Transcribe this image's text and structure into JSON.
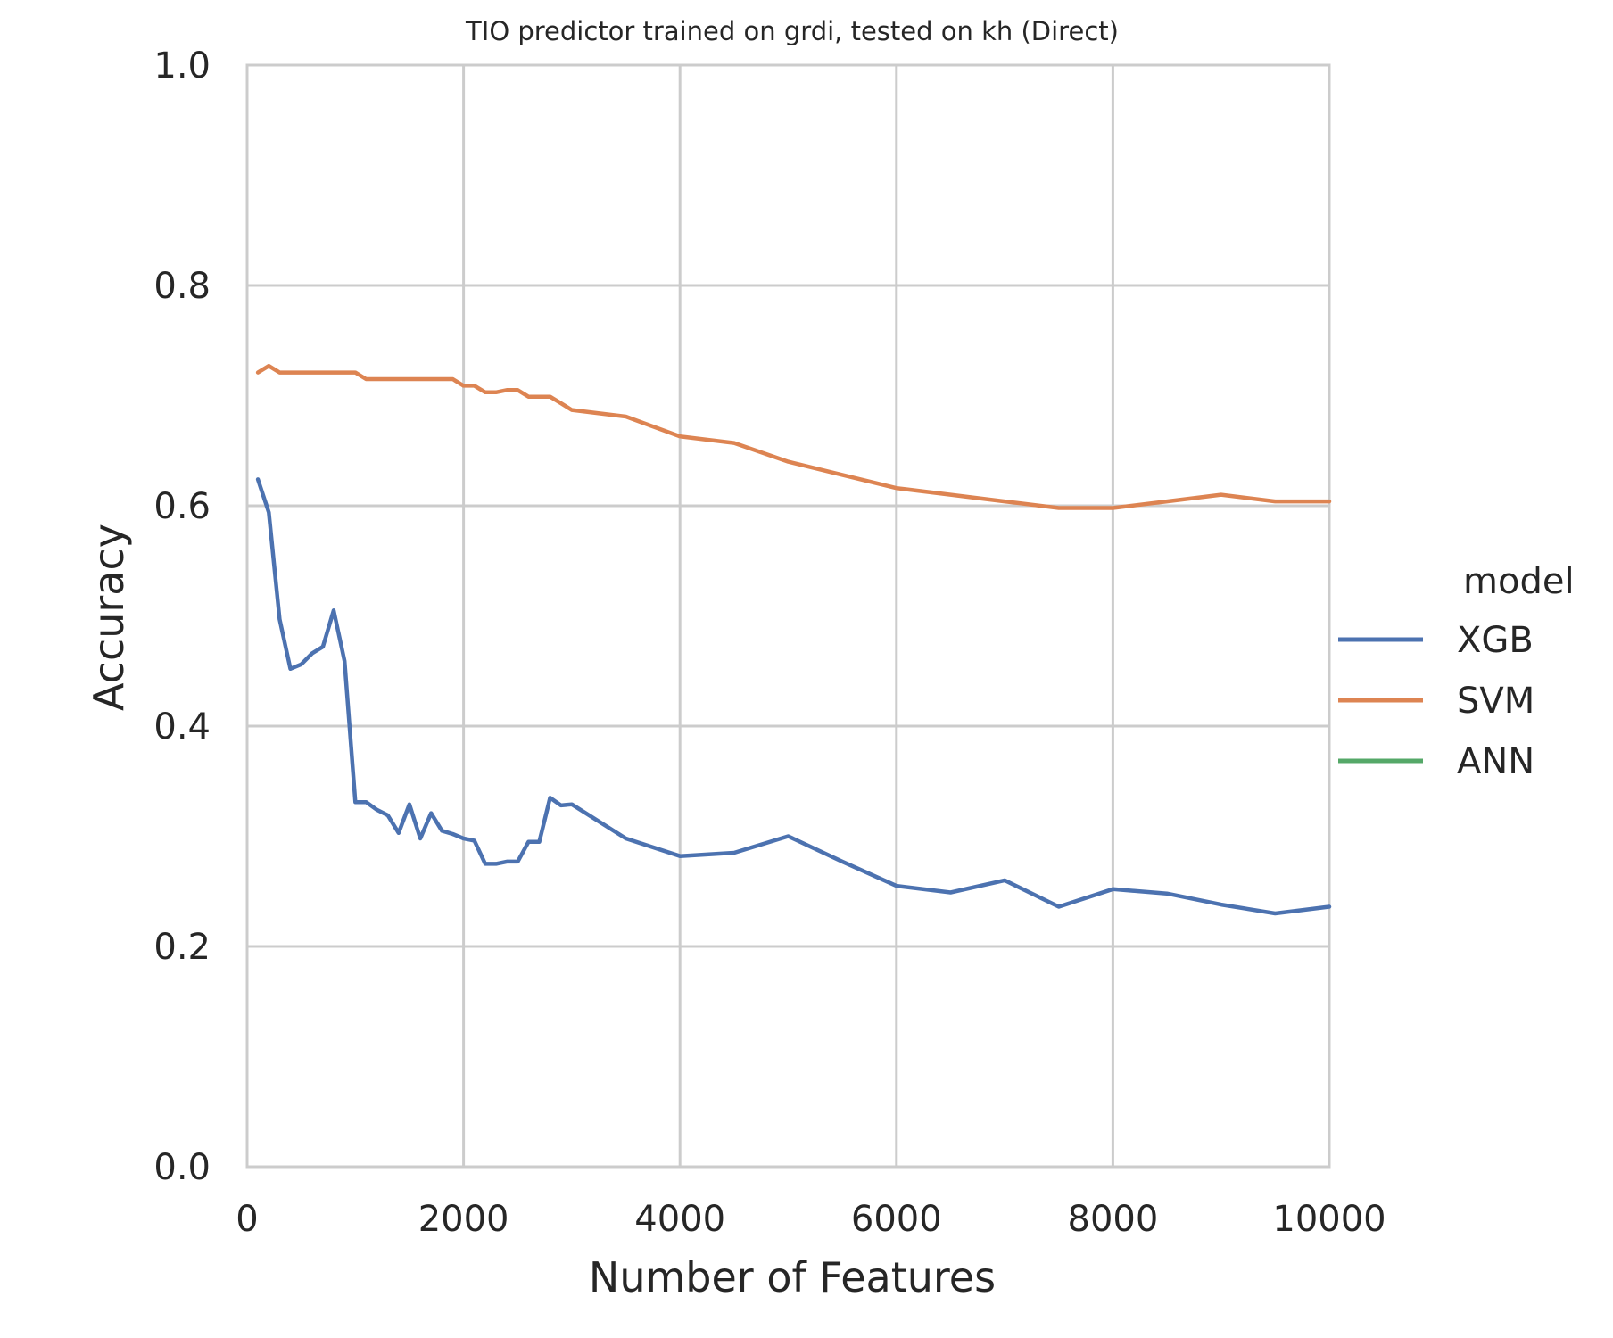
{
  "chart_data": {
    "type": "line",
    "title": "TIO predictor trained on grdi, tested on kh (Direct)",
    "xlabel": "Number of Features",
    "ylabel": "Accuracy",
    "xlim": [
      0,
      10000
    ],
    "ylim": [
      0.0,
      1.0
    ],
    "xticks": [
      0,
      2000,
      4000,
      6000,
      8000,
      10000
    ],
    "xtick_labels": [
      "0",
      "2000",
      "4000",
      "6000",
      "8000",
      "10000"
    ],
    "yticks": [
      0.0,
      0.2,
      0.4,
      0.6,
      0.8,
      1.0
    ],
    "ytick_labels": [
      "0.0",
      "0.2",
      "0.4",
      "0.6",
      "0.8",
      "1.0"
    ],
    "grid": true,
    "legend": {
      "title": "model",
      "placement": "right, outside plot",
      "entries": [
        "XGB",
        "SVM",
        "ANN"
      ]
    },
    "series": [
      {
        "name": "XGB",
        "color": "#4c72b0",
        "x": [
          100,
          200,
          300,
          400,
          500,
          600,
          700,
          800,
          900,
          1000,
          1100,
          1200,
          1300,
          1400,
          1500,
          1600,
          1700,
          1800,
          1900,
          2000,
          2100,
          2200,
          2300,
          2400,
          2500,
          2600,
          2700,
          2800,
          2900,
          3000,
          3500,
          4000,
          4500,
          5000,
          5500,
          6000,
          6500,
          7000,
          7500,
          8000,
          8500,
          9000,
          9500,
          10000
        ],
        "y": [
          0.624,
          0.594,
          0.497,
          0.452,
          0.456,
          0.466,
          0.472,
          0.505,
          0.459,
          0.331,
          0.331,
          0.324,
          0.319,
          0.303,
          0.329,
          0.298,
          0.321,
          0.305,
          0.302,
          0.298,
          0.296,
          0.275,
          0.275,
          0.277,
          0.277,
          0.295,
          0.295,
          0.335,
          0.328,
          0.329,
          0.298,
          0.282,
          0.285,
          0.3,
          0.277,
          0.255,
          0.249,
          0.26,
          0.236,
          0.252,
          0.248,
          0.238,
          0.23,
          0.236
        ]
      },
      {
        "name": "SVM",
        "color": "#dd8452",
        "x": [
          100,
          200,
          300,
          400,
          500,
          600,
          700,
          800,
          900,
          1000,
          1100,
          1200,
          1300,
          1400,
          1500,
          1600,
          1700,
          1800,
          1900,
          2000,
          2100,
          2200,
          2300,
          2400,
          2500,
          2600,
          2700,
          2800,
          2900,
          3000,
          3500,
          4000,
          4500,
          5000,
          5500,
          6000,
          6500,
          7000,
          7500,
          8000,
          8500,
          9000,
          9500,
          10000
        ],
        "y": [
          0.721,
          0.727,
          0.721,
          0.721,
          0.721,
          0.721,
          0.721,
          0.721,
          0.721,
          0.721,
          0.715,
          0.715,
          0.715,
          0.715,
          0.715,
          0.715,
          0.715,
          0.715,
          0.715,
          0.709,
          0.709,
          0.703,
          0.703,
          0.705,
          0.705,
          0.699,
          0.699,
          0.699,
          0.693,
          0.687,
          0.681,
          0.663,
          0.657,
          0.64,
          0.628,
          0.616,
          0.61,
          0.604,
          0.598,
          0.598,
          0.604,
          0.61,
          0.604,
          0.604
        ]
      },
      {
        "name": "ANN",
        "color": "#55a868",
        "x": [],
        "y": []
      }
    ]
  }
}
